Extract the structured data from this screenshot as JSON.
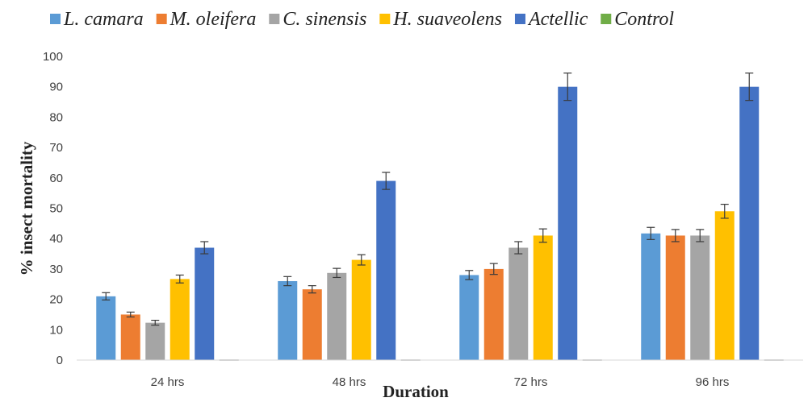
{
  "chart_data": {
    "type": "bar",
    "title": "",
    "xlabel": "Duration",
    "ylabel": "% insect mortality",
    "categories": [
      "24 hrs",
      "48 hrs",
      "72 hrs",
      "96 hrs"
    ],
    "ylim": [
      0,
      100
    ],
    "yticks": [
      0,
      10,
      20,
      30,
      40,
      50,
      60,
      70,
      80,
      90,
      100
    ],
    "grid": false,
    "legend_position": "top",
    "error_bars": true,
    "series": [
      {
        "name": "L. camara",
        "color": "#5B9BD5",
        "values": [
          21,
          26,
          28,
          41.7
        ],
        "errors": [
          1.2,
          1.5,
          1.5,
          2.0
        ]
      },
      {
        "name": "M. oleifera",
        "color": "#ED7D31",
        "values": [
          15,
          23.3,
          30,
          41
        ],
        "errors": [
          0.8,
          1.2,
          1.8,
          2.0
        ]
      },
      {
        "name": "C. sinensis",
        "color": "#A5A5A5",
        "values": [
          12.3,
          28.7,
          37,
          41
        ],
        "errors": [
          0.8,
          1.5,
          2.0,
          2.0
        ]
      },
      {
        "name": "H. suaveolens",
        "color": "#FFC000",
        "values": [
          26.7,
          33,
          41,
          49
        ],
        "errors": [
          1.3,
          1.7,
          2.2,
          2.3
        ]
      },
      {
        "name": "Actellic",
        "color": "#4472C4",
        "values": [
          37,
          59,
          90,
          90
        ],
        "errors": [
          2.0,
          2.8,
          4.5,
          4.5
        ]
      },
      {
        "name": "Control",
        "color": "#70AD47",
        "values": [
          0,
          0,
          0,
          0
        ],
        "errors": [
          0,
          0,
          0,
          0
        ]
      }
    ]
  }
}
